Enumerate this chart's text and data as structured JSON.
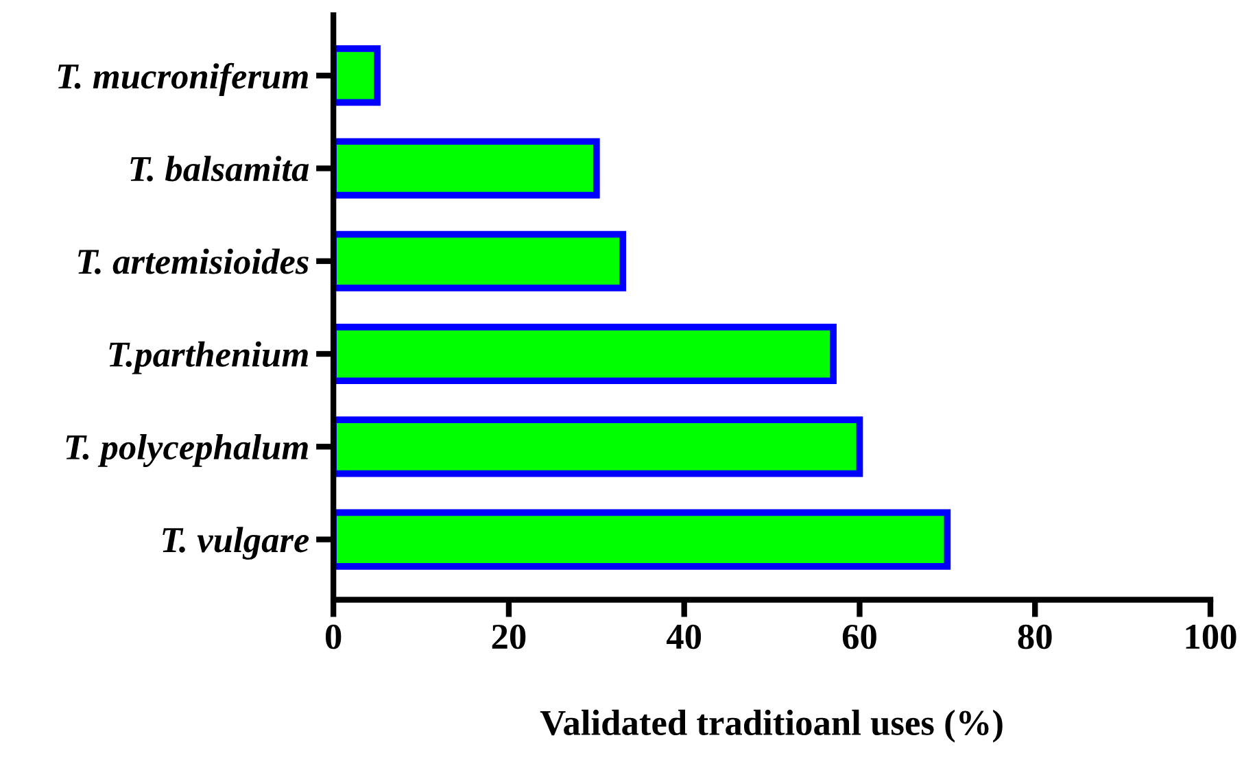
{
  "chart_data": {
    "type": "bar",
    "orientation": "horizontal",
    "xlabel": "Validated traditioanl uses (%)",
    "categories": [
      "T. mucroniferum",
      "T. balsamita",
      "T. artemisioides",
      "T.parthenium",
      "T. polycephalum",
      "T. vulgare"
    ],
    "values": [
      5,
      30,
      33,
      57,
      60,
      70
    ],
    "color": "#00ff00",
    "xlim": [
      0,
      100
    ],
    "xticks": [
      0,
      20,
      40,
      60,
      80,
      100
    ],
    "grid": false
  }
}
